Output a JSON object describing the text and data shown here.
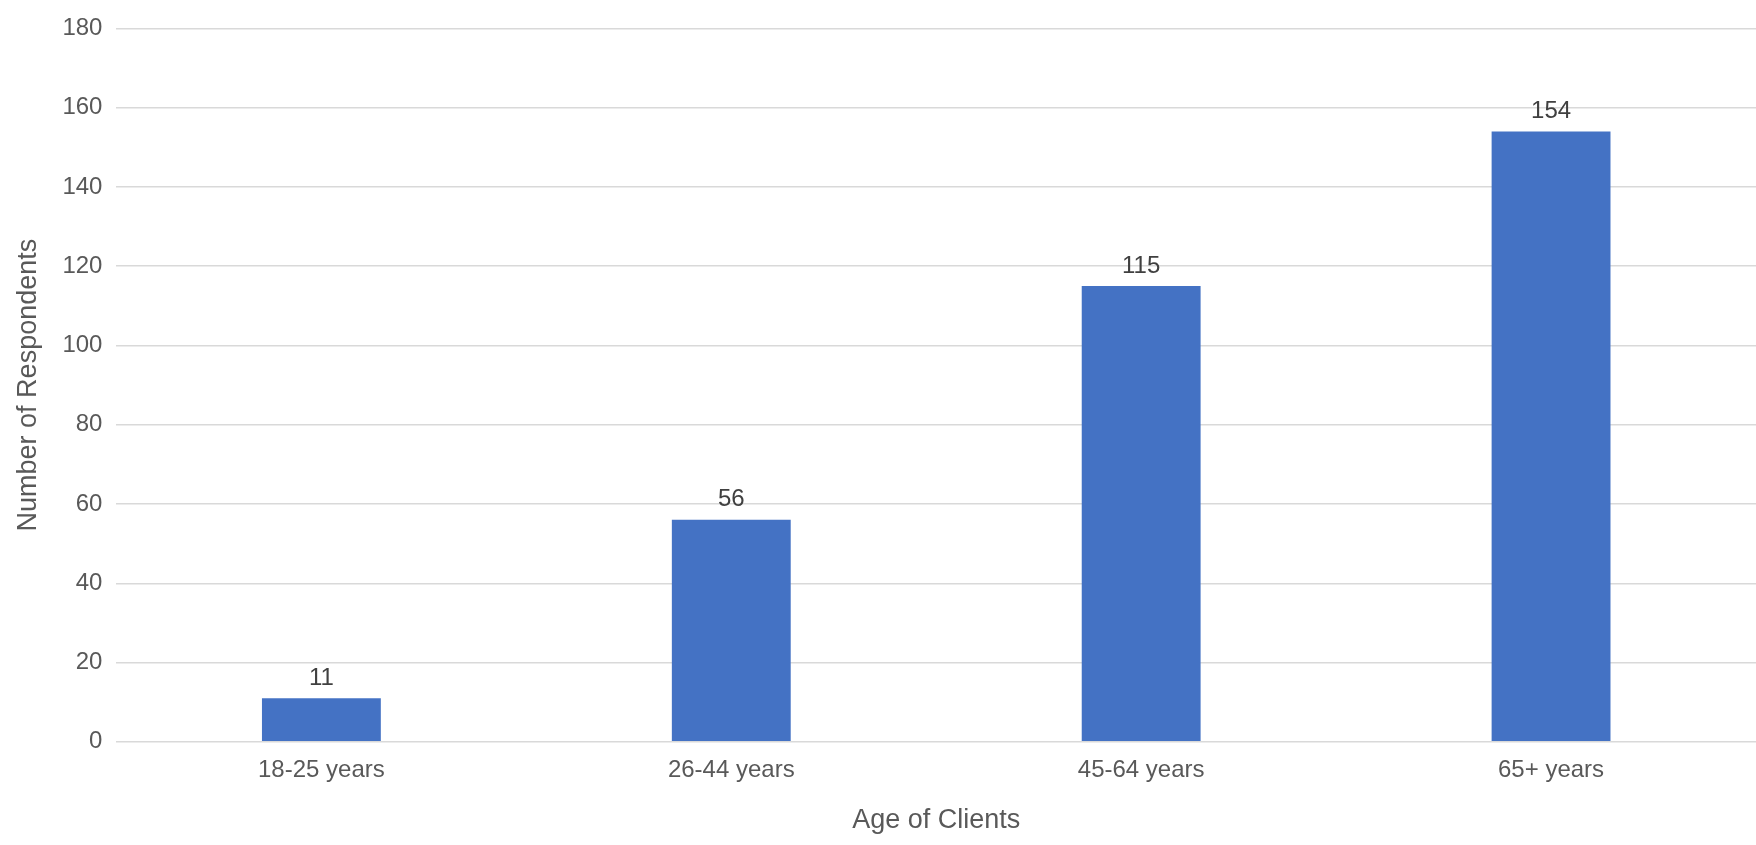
{
  "chart_data": {
    "type": "bar",
    "xlabel": "Age of Clients",
    "ylabel": "Number of Respondents",
    "categories": [
      "18-25 years",
      "26-44 years",
      "45-64 years",
      "65+ years"
    ],
    "values": [
      11,
      56,
      115,
      154
    ],
    "color": "#4472c4",
    "ylim": [
      0,
      180
    ],
    "yticks": [
      0,
      20,
      40,
      60,
      80,
      100,
      120,
      140,
      160,
      180
    ],
    "grid": "y",
    "data_labels": true,
    "legend": false
  }
}
